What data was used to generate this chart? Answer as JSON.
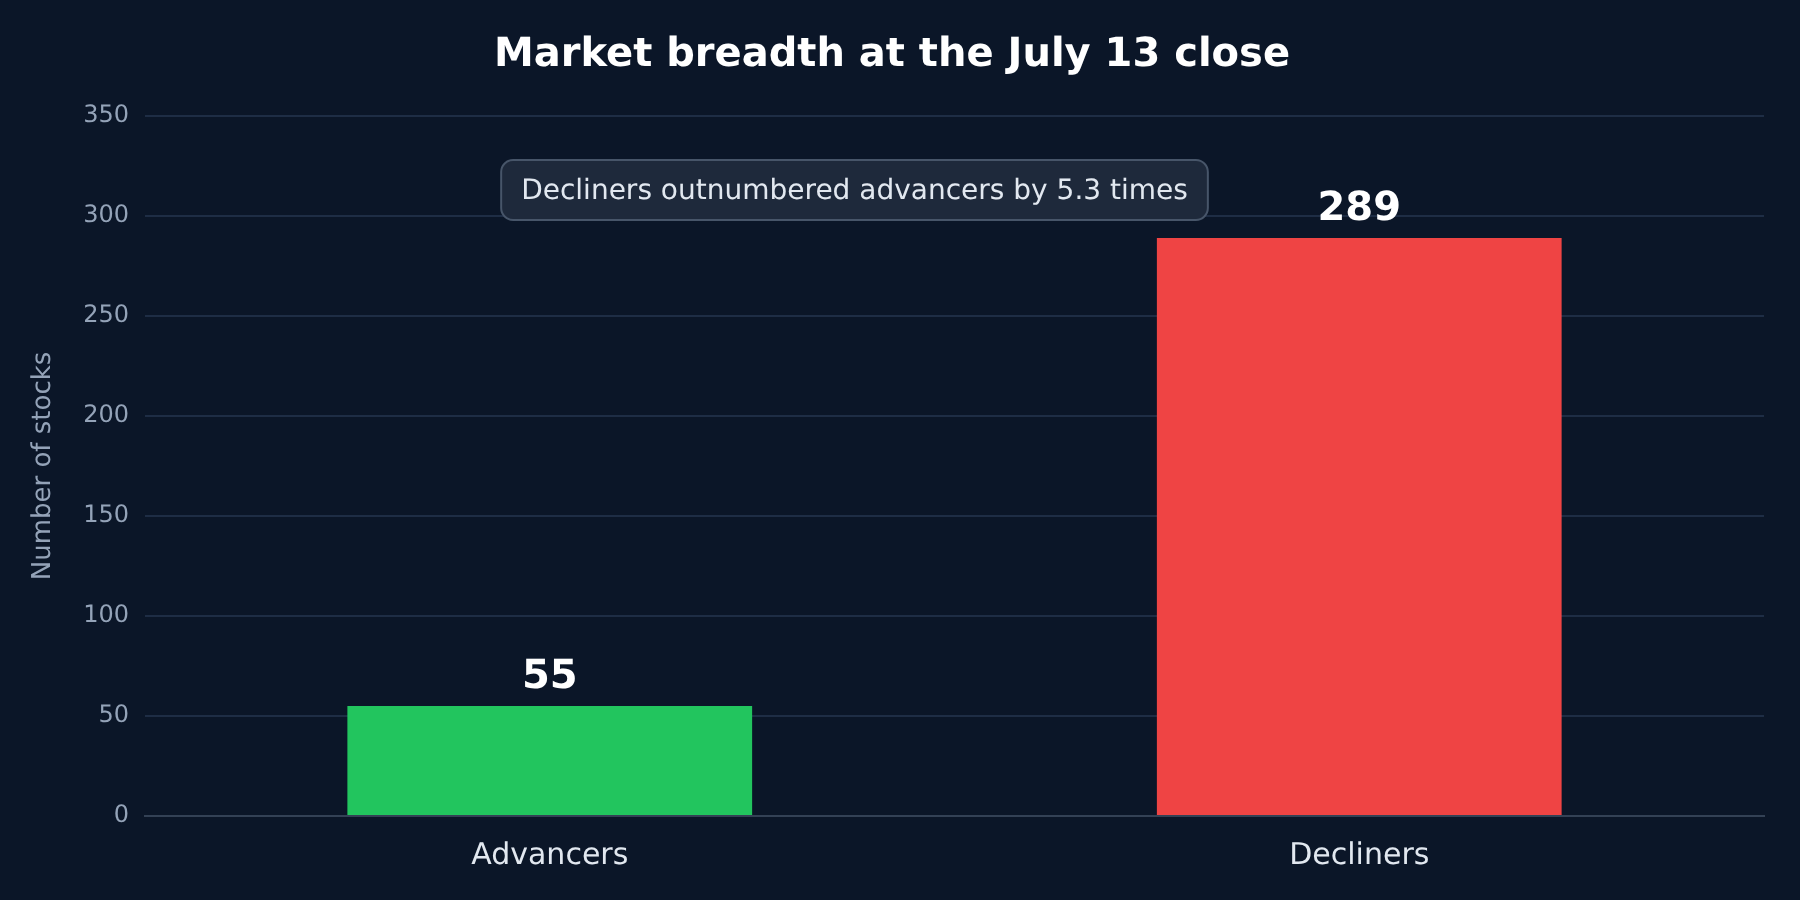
{
  "chart_data": {
    "type": "bar",
    "title": "Market breadth at the July 13 close",
    "ylabel": "Number of stocks",
    "categories": [
      "Advancers",
      "Decliners"
    ],
    "values": [
      55,
      289
    ],
    "colors": [
      "#22c55e",
      "#ef4444"
    ],
    "ylim": [
      0,
      350
    ],
    "yticks": [
      0,
      50,
      100,
      150,
      200,
      250,
      300,
      350
    ],
    "grid": "y",
    "legend": false,
    "data_labels": true,
    "annotations": [
      "Decliners outnumbered advancers by 5.3 times"
    ]
  }
}
